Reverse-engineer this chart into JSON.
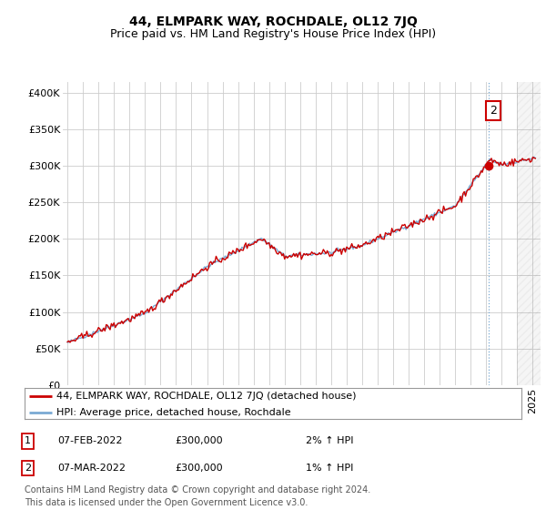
{
  "title": "44, ELMPARK WAY, ROCHDALE, OL12 7JQ",
  "subtitle": "Price paid vs. HM Land Registry's House Price Index (HPI)",
  "ylabel_ticks": [
    "£0",
    "£50K",
    "£100K",
    "£150K",
    "£200K",
    "£250K",
    "£300K",
    "£350K",
    "£400K"
  ],
  "ytick_values": [
    0,
    50000,
    100000,
    150000,
    200000,
    250000,
    300000,
    350000,
    400000
  ],
  "ylim": [
    0,
    415000
  ],
  "xlim_start": 1994.7,
  "xlim_end": 2025.5,
  "hpi_color": "#7aaad4",
  "price_color": "#cc0000",
  "marker_color": "#cc0000",
  "dashed_line_color": "#7aaad4",
  "annotation_box_color": "#cc0000",
  "grid_color": "#cccccc",
  "bg_color": "#ffffff",
  "legend_label_red": "44, ELMPARK WAY, ROCHDALE, OL12 7JQ (detached house)",
  "legend_label_blue": "HPI: Average price, detached house, Rochdale",
  "transaction1_label": "1",
  "transaction1_date": "07-FEB-2022",
  "transaction1_price": "£300,000",
  "transaction1_hpi": "2% ↑ HPI",
  "transaction2_label": "2",
  "transaction2_date": "07-MAR-2022",
  "transaction2_price": "£300,000",
  "transaction2_hpi": "1% ↑ HPI",
  "footer": "Contains HM Land Registry data © Crown copyright and database right 2024.\nThis data is licensed under the Open Government Licence v3.0.",
  "title_fontsize": 10,
  "subtitle_fontsize": 9,
  "tick_fontsize": 8,
  "legend_fontsize": 8,
  "footer_fontsize": 7
}
